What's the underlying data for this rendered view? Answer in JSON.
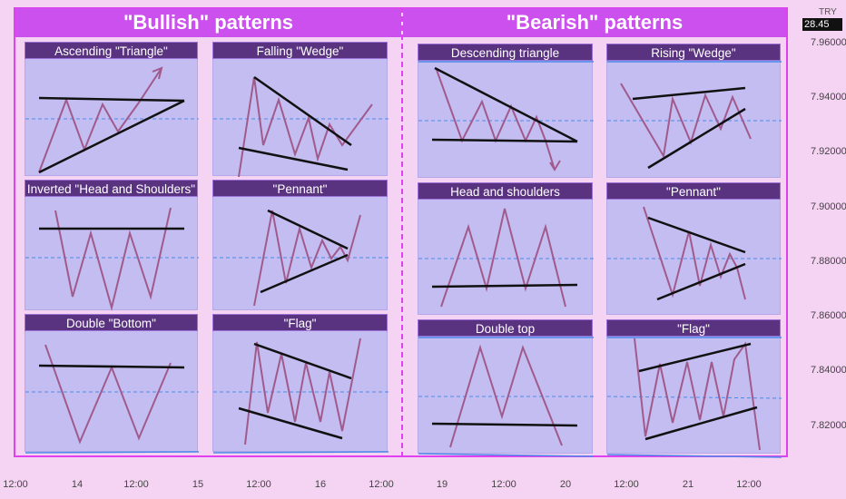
{
  "headers": {
    "bullish": "\"Bullish\" patterns",
    "bearish": "\"Bearish\" patterns"
  },
  "patterns": {
    "bullish": [
      "Ascending \"Triangle\"",
      "Falling \"Wedge\"",
      "Inverted \"Head and Shoulders\"",
      "\"Pennant\"",
      "Double \"Bottom\"",
      "\"Flag\""
    ],
    "bearish": [
      "Descending triangle",
      "Rising \"Wedge\"",
      "Head and shoulders",
      "\"Pennant\"",
      "Double top",
      "\"Flag\""
    ]
  },
  "price_axis": {
    "currency": "TRY",
    "current_badge": "28.45",
    "ticks": [
      "7.96000",
      "7.94000",
      "7.92000",
      "7.90000",
      "7.88000",
      "7.86000",
      "7.84000",
      "7.82000"
    ]
  },
  "time_axis": {
    "ticks": [
      "12:00",
      "14",
      "12:00",
      "15",
      "12:00",
      "16",
      "12:00",
      "19",
      "12:00",
      "20",
      "12:00",
      "21",
      "12:00"
    ]
  },
  "colors": {
    "background": "#f5d3f3",
    "header": "#cc50ee",
    "panel": "#c4bdf2",
    "title_bar": "#5a3380",
    "zigzag": "#a05a8c",
    "trendline": "#111111",
    "dashed_level": "#4a8ae8"
  }
}
